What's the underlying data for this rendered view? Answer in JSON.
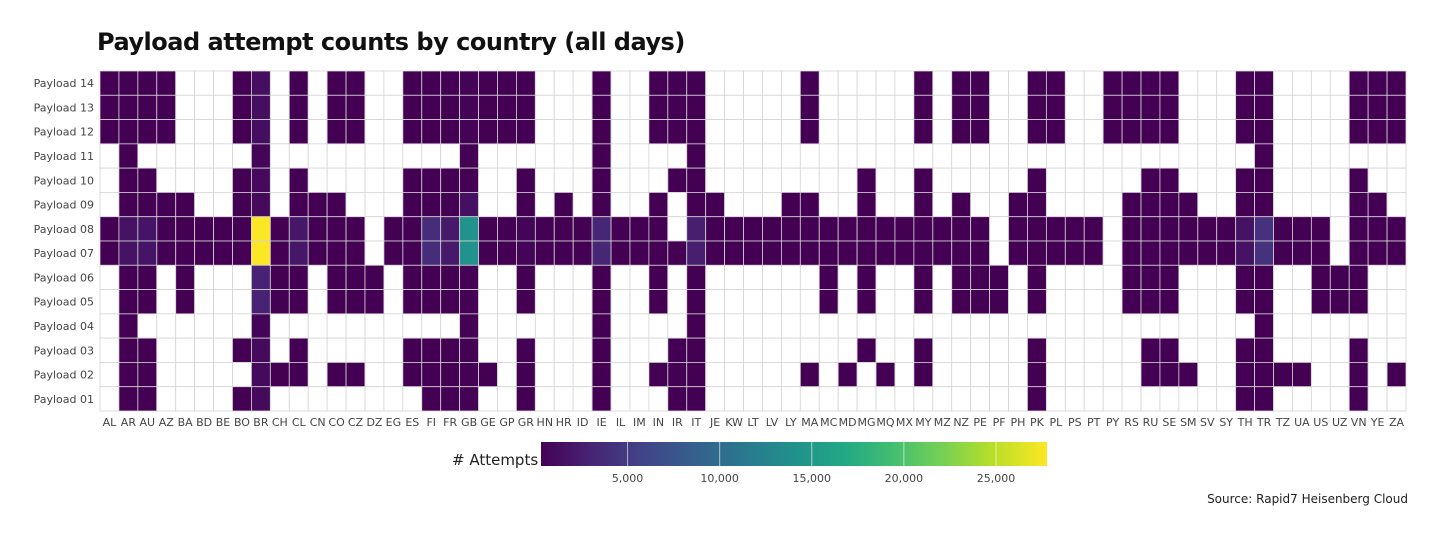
{
  "chart_data": {
    "type": "heatmap",
    "title": "Payload attempt counts by country (all days)",
    "xlabel": "",
    "ylabel": "",
    "x_categories": [
      "AL",
      "AR",
      "AU",
      "AZ",
      "BA",
      "BD",
      "BE",
      "BO",
      "BR",
      "CH",
      "CL",
      "CN",
      "CO",
      "CZ",
      "DZ",
      "EG",
      "ES",
      "FI",
      "FR",
      "GB",
      "GE",
      "GP",
      "GR",
      "HN",
      "HR",
      "ID",
      "IE",
      "IL",
      "IM",
      "IN",
      "IR",
      "IT",
      "JE",
      "KW",
      "LT",
      "LV",
      "LY",
      "MA",
      "MC",
      "MD",
      "MG",
      "MQ",
      "MX",
      "MY",
      "MZ",
      "NZ",
      "PE",
      "PF",
      "PH",
      "PK",
      "PL",
      "PS",
      "PT",
      "PY",
      "RS",
      "RU",
      "SE",
      "SM",
      "SV",
      "SY",
      "TH",
      "TR",
      "TZ",
      "UA",
      "US",
      "UZ",
      "VN",
      "YE",
      "ZA"
    ],
    "y_categories": [
      "Payload 14",
      "Payload 13",
      "Payload 12",
      "Payload 11",
      "Payload 10",
      "Payload 09",
      "Payload 08",
      "Payload 07",
      "Payload 06",
      "Payload 05",
      "Payload 04",
      "Payload 03",
      "Payload 02",
      "Payload 01"
    ],
    "series": [
      {
        "name": "Payload 14",
        "values": {
          "AL": 300,
          "AR": 300,
          "AU": 300,
          "AZ": 300,
          "BO": 300,
          "BR": 1300,
          "CL": 300,
          "CO": 300,
          "CZ": 300,
          "ES": 300,
          "FI": 300,
          "FR": 300,
          "GB": 500,
          "GE": 300,
          "GP": 300,
          "GR": 300,
          "IE": 300,
          "IN": 300,
          "IR": 300,
          "IT": 300,
          "MA": 300,
          "MY": 300,
          "NZ": 300,
          "PE": 300,
          "PK": 300,
          "PL": 300,
          "PY": 300,
          "RS": 300,
          "RU": 300,
          "SE": 300,
          "TH": 300,
          "TR": 300,
          "VN": 300,
          "YE": 300,
          "ZA": 300
        }
      },
      {
        "name": "Payload 13",
        "values": {
          "AL": 300,
          "AR": 300,
          "AU": 300,
          "AZ": 300,
          "BO": 300,
          "BR": 1300,
          "CL": 300,
          "CO": 300,
          "CZ": 300,
          "ES": 300,
          "FI": 300,
          "FR": 300,
          "GB": 500,
          "GE": 300,
          "GP": 300,
          "GR": 300,
          "IE": 300,
          "IN": 300,
          "IR": 300,
          "IT": 300,
          "MA": 300,
          "MY": 300,
          "NZ": 300,
          "PE": 300,
          "PK": 300,
          "PL": 300,
          "PY": 300,
          "RS": 300,
          "RU": 300,
          "SE": 300,
          "TH": 300,
          "TR": 300,
          "VN": 300,
          "YE": 300,
          "ZA": 300
        }
      },
      {
        "name": "Payload 12",
        "values": {
          "AL": 300,
          "AR": 300,
          "AU": 300,
          "AZ": 300,
          "BO": 300,
          "BR": 1300,
          "CL": 300,
          "CO": 300,
          "CZ": 300,
          "ES": 300,
          "FI": 300,
          "FR": 300,
          "GB": 500,
          "GE": 300,
          "GP": 300,
          "GR": 300,
          "IE": 300,
          "IN": 300,
          "IR": 300,
          "IT": 300,
          "MA": 300,
          "MY": 300,
          "NZ": 300,
          "PE": 300,
          "PK": 300,
          "PL": 300,
          "PY": 300,
          "RS": 300,
          "RU": 300,
          "SE": 300,
          "TH": 300,
          "TR": 300,
          "VN": 300,
          "YE": 300,
          "ZA": 300
        }
      },
      {
        "name": "Payload 11",
        "values": {
          "AR": 300,
          "BR": 600,
          "GB": 400,
          "IE": 300,
          "IT": 300,
          "TR": 300
        }
      },
      {
        "name": "Payload 10",
        "values": {
          "AR": 300,
          "AU": 300,
          "BO": 300,
          "BR": 1000,
          "CL": 300,
          "ES": 300,
          "FI": 300,
          "FR": 300,
          "GB": 400,
          "GR": 300,
          "IE": 300,
          "IR": 300,
          "IT": 300,
          "MG": 300,
          "MY": 300,
          "PK": 300,
          "RU": 300,
          "SE": 300,
          "TH": 300,
          "TR": 300,
          "VN": 300
        }
      },
      {
        "name": "Payload 09",
        "values": {
          "AR": 300,
          "AU": 300,
          "AZ": 300,
          "BA": 300,
          "BO": 300,
          "BR": 1000,
          "CL": 300,
          "CN": 300,
          "CO": 300,
          "ES": 300,
          "FI": 300,
          "FR": 300,
          "GB": 1500,
          "GR": 300,
          "HR": 300,
          "IE": 300,
          "IN": 300,
          "IT": 300,
          "JE": 300,
          "LY": 300,
          "MA": 300,
          "MG": 300,
          "MY": 300,
          "NZ": 300,
          "PH": 300,
          "PK": 300,
          "RS": 300,
          "RU": 300,
          "SE": 300,
          "SM": 300,
          "TH": 300,
          "TR": 300,
          "VN": 300,
          "YE": 300
        }
      },
      {
        "name": "Payload 08",
        "values": {
          "AL": 300,
          "AR": 1600,
          "AU": 1800,
          "AZ": 300,
          "BA": 300,
          "BD": 300,
          "BE": 300,
          "BO": 300,
          "BR": 27700,
          "CH": 300,
          "CL": 2000,
          "CN": 300,
          "CO": 300,
          "CZ": 300,
          "EG": 300,
          "ES": 300,
          "FI": 3800,
          "FR": 2200,
          "GB": 14200,
          "GE": 300,
          "GP": 300,
          "GR": 600,
          "HN": 300,
          "HR": 300,
          "ID": 300,
          "IE": 3200,
          "IL": 300,
          "IM": 300,
          "IN": 300,
          "IT": 2600,
          "JE": 300,
          "KW": 300,
          "LT": 300,
          "LV": 300,
          "LY": 300,
          "MA": 300,
          "MC": 300,
          "MD": 300,
          "MG": 300,
          "MQ": 300,
          "MX": 300,
          "MY": 300,
          "MZ": 300,
          "NZ": 300,
          "PE": 300,
          "PH": 300,
          "PK": 300,
          "PL": 300,
          "PS": 300,
          "PT": 300,
          "RS": 300,
          "RU": 300,
          "SE": 300,
          "SM": 300,
          "SV": 300,
          "SY": 300,
          "TH": 1600,
          "TR": 4200,
          "TZ": 300,
          "UA": 300,
          "US": 300,
          "VN": 300,
          "YE": 300,
          "ZA": 300
        }
      },
      {
        "name": "Payload 07",
        "values": {
          "AL": 300,
          "AR": 1600,
          "AU": 1800,
          "AZ": 300,
          "BA": 300,
          "BD": 300,
          "BE": 300,
          "BO": 300,
          "BR": 27700,
          "CH": 300,
          "CL": 2000,
          "CN": 300,
          "CO": 300,
          "CZ": 300,
          "EG": 300,
          "ES": 300,
          "FI": 3800,
          "FR": 2200,
          "GB": 14200,
          "GE": 300,
          "GP": 300,
          "GR": 600,
          "HN": 300,
          "HR": 300,
          "ID": 300,
          "IE": 3200,
          "IL": 300,
          "IM": 300,
          "IN": 300,
          "IR": 300,
          "IT": 2600,
          "JE": 300,
          "KW": 300,
          "LT": 300,
          "LV": 300,
          "LY": 300,
          "MA": 300,
          "MC": 300,
          "MD": 300,
          "MG": 300,
          "MQ": 300,
          "MX": 300,
          "MY": 300,
          "MZ": 300,
          "NZ": 300,
          "PE": 300,
          "PH": 300,
          "PK": 300,
          "PL": 300,
          "PS": 300,
          "PT": 300,
          "RS": 300,
          "RU": 300,
          "SE": 300,
          "SM": 300,
          "SV": 300,
          "SY": 300,
          "TH": 1600,
          "TR": 4200,
          "TZ": 300,
          "UA": 300,
          "US": 300,
          "VN": 300,
          "YE": 300,
          "ZA": 300
        }
      },
      {
        "name": "Payload 06",
        "values": {
          "AR": 300,
          "AU": 300,
          "BA": 300,
          "BR": 3000,
          "CH": 300,
          "CL": 300,
          "CO": 300,
          "CZ": 300,
          "DZ": 300,
          "ES": 300,
          "FI": 300,
          "FR": 300,
          "GB": 400,
          "GR": 300,
          "IE": 300,
          "IN": 300,
          "IT": 300,
          "MC": 300,
          "MG": 300,
          "MY": 300,
          "NZ": 300,
          "PE": 300,
          "PF": 300,
          "PK": 300,
          "RS": 300,
          "RU": 300,
          "SE": 300,
          "TH": 300,
          "TR": 300,
          "US": 300,
          "UZ": 300,
          "VN": 300
        }
      },
      {
        "name": "Payload 05",
        "values": {
          "AR": 300,
          "AU": 300,
          "BA": 300,
          "BR": 3000,
          "CH": 300,
          "CL": 300,
          "CO": 300,
          "CZ": 300,
          "DZ": 300,
          "ES": 300,
          "FI": 300,
          "FR": 300,
          "GB": 400,
          "GR": 300,
          "IE": 300,
          "IN": 300,
          "IT": 300,
          "MC": 300,
          "MG": 300,
          "MY": 300,
          "NZ": 300,
          "PE": 300,
          "PF": 300,
          "PK": 300,
          "RS": 300,
          "RU": 300,
          "SE": 300,
          "TH": 300,
          "TR": 300,
          "US": 300,
          "UZ": 300,
          "VN": 300
        }
      },
      {
        "name": "Payload 04",
        "values": {
          "AR": 300,
          "BR": 600,
          "GB": 400,
          "IE": 300,
          "IT": 300,
          "TR": 300
        }
      },
      {
        "name": "Payload 03",
        "values": {
          "AR": 300,
          "AU": 300,
          "BO": 300,
          "BR": 1000,
          "CL": 300,
          "ES": 300,
          "FI": 300,
          "FR": 300,
          "GB": 400,
          "GR": 300,
          "IE": 300,
          "IR": 300,
          "IT": 300,
          "MG": 300,
          "MY": 300,
          "PK": 300,
          "RU": 300,
          "SE": 300,
          "TH": 300,
          "TR": 300,
          "VN": 300
        }
      },
      {
        "name": "Payload 02",
        "values": {
          "AR": 300,
          "AU": 300,
          "BR": 1000,
          "CH": 300,
          "CL": 300,
          "CO": 300,
          "CZ": 300,
          "ES": 300,
          "FI": 300,
          "FR": 300,
          "GB": 400,
          "GE": 300,
          "GR": 300,
          "IE": 300,
          "IN": 300,
          "IR": 300,
          "IT": 300,
          "MA": 300,
          "MD": 300,
          "MQ": 300,
          "MY": 300,
          "PK": 300,
          "RU": 300,
          "SE": 300,
          "SM": 300,
          "TH": 300,
          "TR": 300,
          "TZ": 300,
          "UA": 300,
          "VN": 300,
          "ZA": 300
        }
      },
      {
        "name": "Payload 01",
        "values": {
          "AR": 300,
          "AU": 300,
          "BO": 300,
          "BR": 1000,
          "FI": 300,
          "FR": 300,
          "GB": 400,
          "GR": 300,
          "IE": 300,
          "IR": 300,
          "IT": 300,
          "PK": 300,
          "TH": 300,
          "TR": 300,
          "VN": 300
        }
      }
    ],
    "colorbar": {
      "label": "# Attempts",
      "range": [
        300,
        27770
      ],
      "ticks": [
        5000,
        10000,
        15000,
        20000,
        25000
      ],
      "tick_labels": [
        "5,000",
        "10,000",
        "15,000",
        "20,000",
        "25,000"
      ],
      "colormap": "viridis",
      "placement": "bottom-center"
    },
    "grid": true,
    "source": "Source: Rapid7 Heisenberg Cloud"
  },
  "colors": {
    "empty": "#ffffff",
    "grid": "#d4d4d4",
    "low": "#440154",
    "high": "#fde725"
  }
}
